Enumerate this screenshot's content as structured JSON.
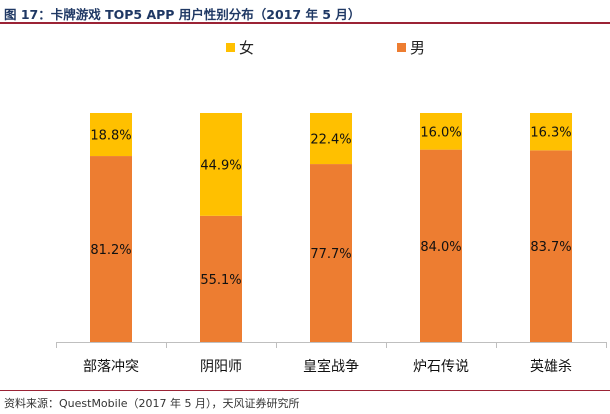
{
  "header": {
    "title": "图 17：卡牌游戏 TOP5 APP 用户性别分布（2017 年 5 月）"
  },
  "footer": {
    "source": "资料来源：QuestMobile（2017 年 5 月），天风证券研究所"
  },
  "legend": [
    {
      "label": "女",
      "color": "#FFC000"
    },
    {
      "label": "男",
      "color": "#ED7D31"
    }
  ],
  "chart_data": {
    "type": "bar",
    "stacked": true,
    "percent_stacked": true,
    "categories": [
      "部落冲突",
      "阴阳师",
      "皇室战争",
      "炉石传说",
      "英雄杀"
    ],
    "series": [
      {
        "name": "男",
        "color": "#ED7D31",
        "values": [
          81.2,
          55.1,
          77.7,
          84.0,
          83.7
        ],
        "labels": [
          "81.2%",
          "55.1%",
          "77.7%",
          "84.0%",
          "83.7%"
        ]
      },
      {
        "name": "女",
        "color": "#FFC000",
        "values": [
          18.8,
          44.9,
          22.4,
          16.0,
          16.3
        ],
        "labels": [
          "18.8%",
          "44.9%",
          "22.4%",
          "16.0%",
          "16.3%"
        ]
      }
    ],
    "ylim": [
      0,
      100
    ],
    "legend_position": "top",
    "grid": false
  }
}
